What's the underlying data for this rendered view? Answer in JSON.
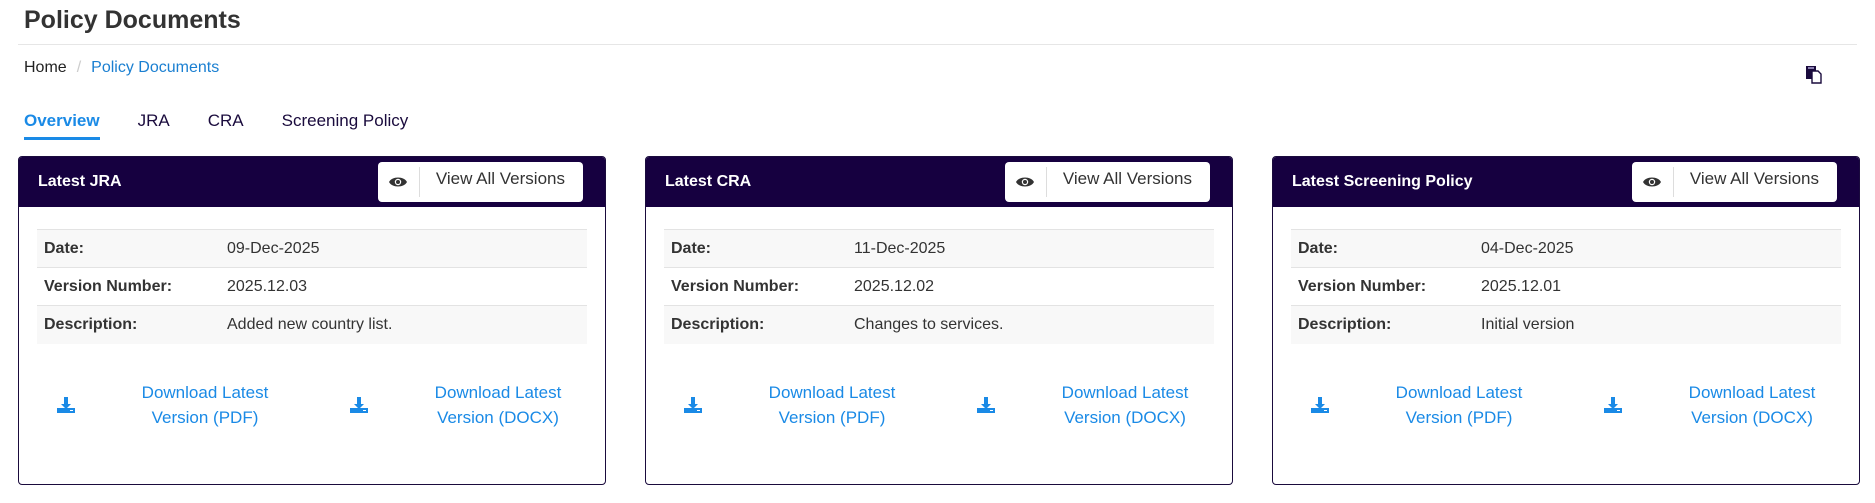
{
  "page": {
    "title": "Policy Documents"
  },
  "breadcrumb": {
    "home": "Home",
    "current": "Policy Documents"
  },
  "tabs": [
    {
      "label": "Overview",
      "active": true
    },
    {
      "label": "JRA"
    },
    {
      "label": "CRA"
    },
    {
      "label": "Screening Policy"
    }
  ],
  "colors": {
    "header": "#160040",
    "link": "#1a8ae6"
  },
  "labels": {
    "date": "Date:",
    "version": "Version Number:",
    "description": "Description:",
    "view_all": "View All Versions",
    "download_pdf": "Download Latest Version (PDF)",
    "download_docx": "Download Latest Version (DOCX)"
  },
  "cards": [
    {
      "title": "Latest JRA",
      "date": "09-Dec-2025",
      "version": "2025.12.03",
      "description": "Added new country list."
    },
    {
      "title": "Latest CRA",
      "date": "11-Dec-2025",
      "version": "2025.12.02",
      "description": "Changes to services."
    },
    {
      "title": "Latest Screening Policy",
      "date": "04-Dec-2025",
      "version": "2025.12.01",
      "description": "Initial version"
    }
  ]
}
